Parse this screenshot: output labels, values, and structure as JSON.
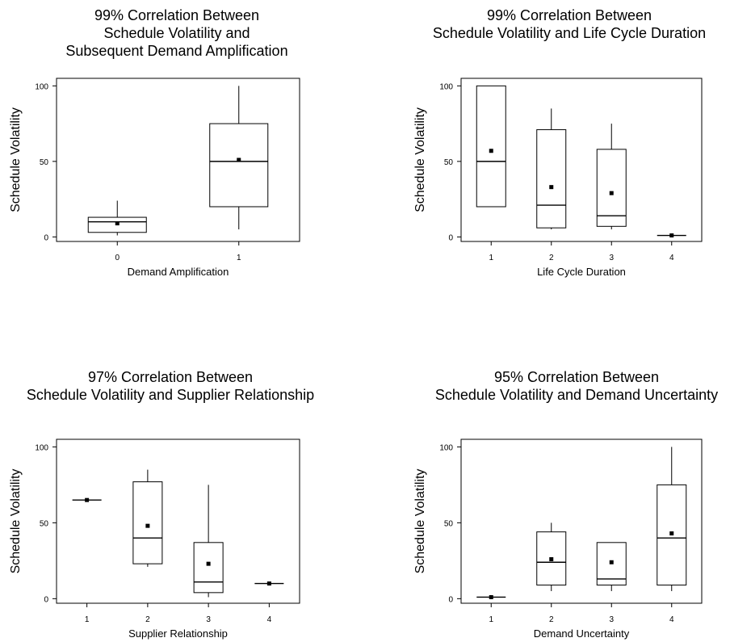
{
  "chart_data": [
    {
      "type": "boxplot",
      "title": [
        "99% Correlation Between",
        "Schedule Volatility and",
        "Subsequent Demand Amplification"
      ],
      "xlabel": "Demand Amplification",
      "ylabel": "Schedule Volatility",
      "categories": [
        "0",
        "1"
      ],
      "ylim": [
        -3,
        105
      ],
      "yticks": [
        "0",
        "50",
        "100"
      ],
      "boxes": [
        {
          "min": 1,
          "q1": 3,
          "median": 10,
          "q3": 13,
          "max": 24,
          "mean": 9
        },
        {
          "min": 5,
          "q1": 20,
          "median": 50,
          "q3": 75,
          "max": 100,
          "mean": 51
        }
      ]
    },
    {
      "type": "boxplot",
      "title": [
        "99% Correlation Between",
        "Schedule Volatility and Life Cycle Duration"
      ],
      "xlabel": "Life Cycle Duration",
      "ylabel": "Schedule Volatility",
      "categories": [
        "1",
        "2",
        "3",
        "4"
      ],
      "ylim": [
        -3,
        105
      ],
      "yticks": [
        "0",
        "50",
        "100"
      ],
      "boxes": [
        {
          "min": 20,
          "q1": 20,
          "median": 50,
          "q3": 100,
          "max": 100,
          "mean": 57
        },
        {
          "min": 5,
          "q1": 6,
          "median": 21,
          "q3": 71,
          "max": 85,
          "mean": 33
        },
        {
          "min": 5,
          "q1": 7,
          "median": 14,
          "q3": 58,
          "max": 75,
          "mean": 29
        },
        {
          "min": 1,
          "q1": 1,
          "median": 1,
          "q3": 1,
          "max": 1,
          "mean": 1
        }
      ]
    },
    {
      "type": "boxplot",
      "title": [
        "97% Correlation Between",
        "Schedule Volatility and Supplier Relationship"
      ],
      "xlabel": "Supplier Relationship",
      "ylabel": "Schedule Volatility",
      "categories": [
        "1",
        "2",
        "3",
        "4"
      ],
      "ylim": [
        -3,
        105
      ],
      "yticks": [
        "0",
        "50",
        "100"
      ],
      "boxes": [
        {
          "min": 65,
          "q1": 65,
          "median": 65,
          "q3": 65,
          "max": 65,
          "mean": 65
        },
        {
          "min": 21,
          "q1": 23,
          "median": 40,
          "q3": 77,
          "max": 85,
          "mean": 48
        },
        {
          "min": 1,
          "q1": 4,
          "median": 11,
          "q3": 37,
          "max": 75,
          "mean": 23
        },
        {
          "min": 10,
          "q1": 10,
          "median": 10,
          "q3": 10,
          "max": 10,
          "mean": 10
        }
      ]
    },
    {
      "type": "boxplot",
      "title": [
        "95% Correlation Between",
        "Schedule Volatility and Demand Uncertainty"
      ],
      "xlabel": "Demand Uncertainty",
      "ylabel": "Schedule Volatility",
      "categories": [
        "1",
        "2",
        "3",
        "4"
      ],
      "ylim": [
        -3,
        105
      ],
      "yticks": [
        "0",
        "50",
        "100"
      ],
      "boxes": [
        {
          "min": 1,
          "q1": 1,
          "median": 1,
          "q3": 1,
          "max": 1,
          "mean": 1
        },
        {
          "min": 5,
          "q1": 9,
          "median": 24,
          "q3": 44,
          "max": 50,
          "mean": 26
        },
        {
          "min": 5,
          "q1": 9,
          "median": 13,
          "q3": 37,
          "max": 37,
          "mean": 24
        },
        {
          "min": 5,
          "q1": 9,
          "median": 40,
          "q3": 75,
          "max": 100,
          "mean": 43
        }
      ]
    }
  ]
}
